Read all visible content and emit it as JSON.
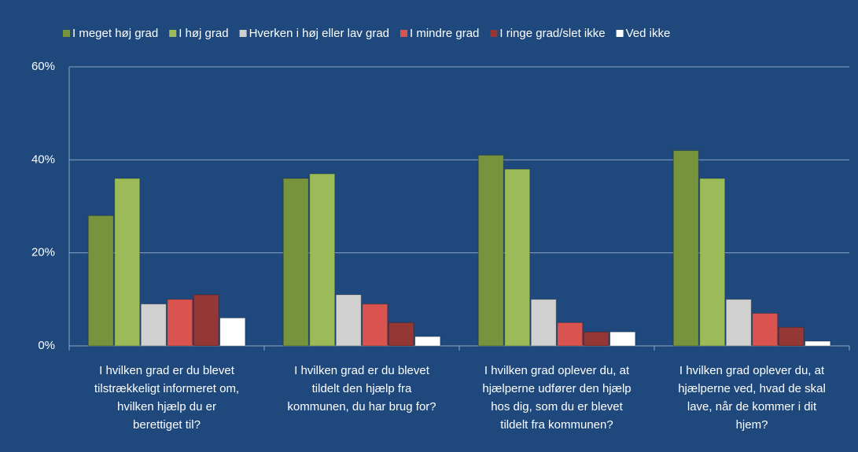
{
  "chart_data": {
    "type": "bar",
    "categories": [
      "I hvilken grad er du blevet\ntilstrækkeligt informeret om,\nhvilken hjælp du er\nberettiget til?",
      "I hvilken grad er du blevet\ntildelt den hjælp fra\nkommunen, du har brug for?",
      "I hvilken grad oplever du, at\nhjælperne udfører den hjælp\nhos dig, som du er blevet\ntildelt fra kommunen?",
      "I hvilken grad oplever du, at\nhjælperne ved, hvad de skal\nlave, når de kommer i dit\nhjem?"
    ],
    "series": [
      {
        "name": "I meget høj grad",
        "color": "#77933c",
        "values": [
          28,
          36,
          41,
          42
        ]
      },
      {
        "name": "I høj grad",
        "color": "#9bbb59",
        "values": [
          36,
          37,
          38,
          36
        ]
      },
      {
        "name": "Hverken i høj eller lav grad",
        "color": "#d0d0d0",
        "values": [
          9,
          11,
          10,
          10
        ]
      },
      {
        "name": "I mindre grad",
        "color": "#d9534f",
        "values": [
          10,
          9,
          5,
          7
        ]
      },
      {
        "name": "I ringe grad/slet ikke",
        "color": "#953735",
        "values": [
          11,
          5,
          3,
          4
        ]
      },
      {
        "name": "Ved ikke",
        "color": "#ffffff",
        "values": [
          6,
          2,
          3,
          1
        ]
      }
    ],
    "ylim": [
      0,
      60
    ],
    "yticks": [
      {
        "value": 0,
        "label": "0%"
      },
      {
        "value": 20,
        "label": "20%"
      },
      {
        "value": 40,
        "label": "40%"
      },
      {
        "value": 60,
        "label": "60%"
      }
    ],
    "grid": true,
    "legend": "top"
  }
}
